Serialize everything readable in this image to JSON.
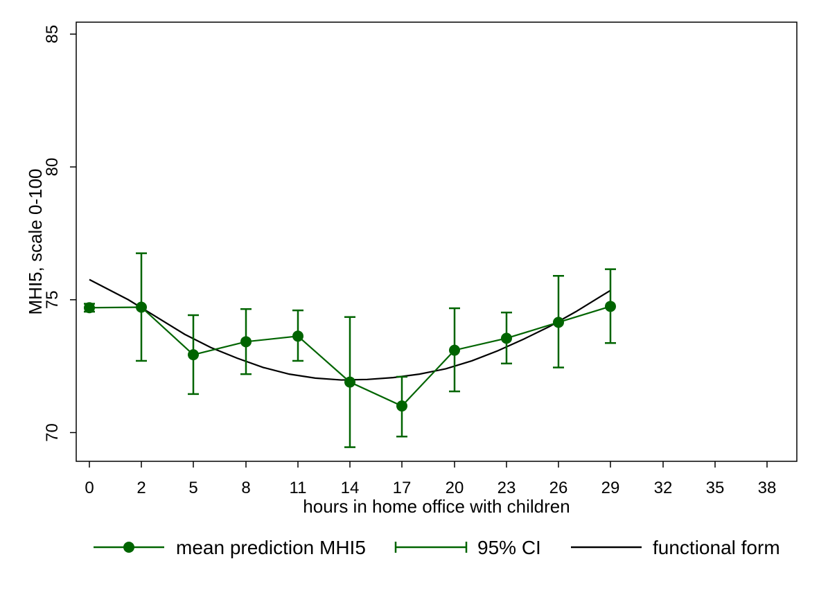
{
  "chart_data": {
    "type": "line",
    "xlabel": "hours in home office with children",
    "ylabel": "MHI5, scale 0-100",
    "x_ticks": [
      0,
      2,
      5,
      8,
      11,
      14,
      17,
      20,
      23,
      26,
      29,
      32,
      35,
      38
    ],
    "y_ticks": [
      70,
      75,
      80,
      85
    ],
    "xlim": [
      0,
      38
    ],
    "ylim": [
      69,
      85.5
    ],
    "grid": false,
    "legend_position": "bottom",
    "x": [
      0,
      2,
      5,
      8,
      11,
      14,
      17,
      20,
      23,
      26,
      29
    ],
    "series": [
      {
        "name": "mean prediction MHI5",
        "color": "#006400",
        "marker": "circle",
        "values": [
          74.7,
          74.72,
          72.93,
          73.42,
          73.63,
          71.9,
          71.0,
          73.1,
          73.55,
          74.15,
          74.75
        ]
      },
      {
        "name": "95% CI",
        "color": "#006400",
        "type": "errorbar",
        "lower": [
          74.55,
          72.7,
          71.45,
          72.2,
          72.7,
          69.45,
          69.85,
          71.55,
          72.6,
          72.45,
          73.37
        ],
        "upper": [
          74.85,
          76.75,
          74.42,
          74.65,
          74.6,
          74.35,
          72.1,
          74.68,
          74.52,
          75.9,
          76.15
        ]
      },
      {
        "name": "functional form",
        "color": "#000000",
        "type": "curve",
        "x": [
          0,
          1.5,
          3,
          4.5,
          6,
          7.5,
          9,
          10.5,
          12,
          13.5,
          15,
          16.5,
          18,
          19.5,
          21,
          22.5,
          24,
          25.5,
          27,
          28.5,
          29
        ],
        "values": [
          75.76,
          75.0,
          74.3,
          73.7,
          73.2,
          72.8,
          72.45,
          72.2,
          72.05,
          71.98,
          72.0,
          72.07,
          72.2,
          72.4,
          72.7,
          73.08,
          73.52,
          74.0,
          74.55,
          75.15,
          75.35
        ]
      }
    ]
  },
  "legend": {
    "items": [
      {
        "label": "mean prediction MHI5"
      },
      {
        "label": "95% CI"
      },
      {
        "label": "functional form"
      }
    ]
  }
}
